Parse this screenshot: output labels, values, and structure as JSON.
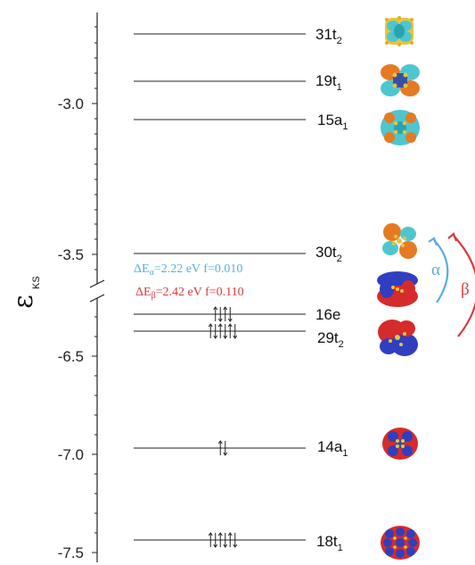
{
  "axis": {
    "symbol": "ε",
    "subscript": "KS",
    "upper_ticks": [
      "-3.0",
      "-3.5"
    ],
    "lower_ticks": [
      "-6.5",
      "-7.0",
      "-7.5"
    ]
  },
  "levels": [
    {
      "name": "31t",
      "sub": "2",
      "energy": -2.78,
      "occupied": false,
      "arrows": 0,
      "orbital": "cyan"
    },
    {
      "name": "19t",
      "sub": "1",
      "energy": -2.94,
      "occupied": false,
      "arrows": 0,
      "orbital": "cyan-orange"
    },
    {
      "name": "15a",
      "sub": "1",
      "energy": -3.06,
      "occupied": false,
      "arrows": 0,
      "orbital": "cyan-orange"
    },
    {
      "name": "30t",
      "sub": "2",
      "energy": -3.5,
      "occupied": false,
      "arrows": 0,
      "orbital": "orange-cyan"
    },
    {
      "name": "16e",
      "sub": "",
      "energy": -6.24,
      "occupied": true,
      "arrows": 4,
      "orbital": "blue-red"
    },
    {
      "name": "29t",
      "sub": "2",
      "energy": -6.3,
      "occupied": true,
      "arrows": 6,
      "orbital": "red-blue"
    },
    {
      "name": "14a",
      "sub": "1",
      "energy": -6.98,
      "occupied": true,
      "arrows": 2,
      "orbital": "red-blue"
    },
    {
      "name": "18t",
      "sub": "1",
      "energy": -7.45,
      "occupied": true,
      "arrows": 6,
      "orbital": "blue-red"
    }
  ],
  "transitions": {
    "alpha": {
      "delta": "ΔE",
      "spin": "α",
      "value": "=2.22 eV f=0.010",
      "color": "#5aaedc"
    },
    "beta": {
      "delta": "ΔE",
      "spin": "β",
      "value": "=2.42 eV f=0.110",
      "color": "#d93a3a"
    }
  },
  "spin_labels": {
    "alpha": "α",
    "beta": "β"
  }
}
